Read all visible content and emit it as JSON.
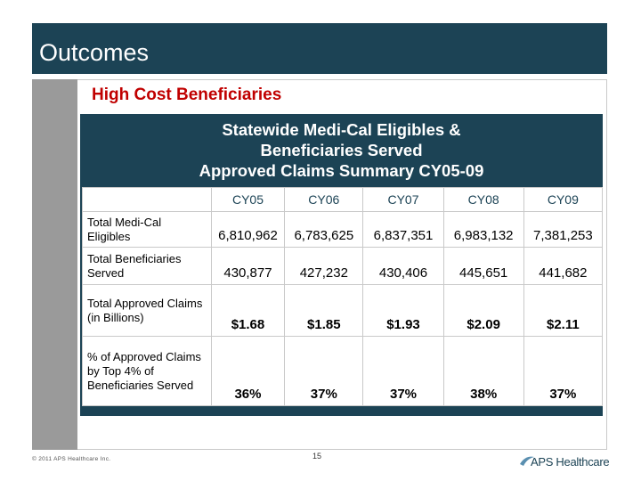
{
  "slide": {
    "title": "Outcomes",
    "subtitle": "High Cost Beneficiaries"
  },
  "table": {
    "title_lines": [
      "Statewide Medi-Cal Eligibles &",
      "Beneficiaries Served",
      "Approved Claims Summary CY05-09"
    ],
    "columns": [
      "CY05",
      "CY06",
      "CY07",
      "CY08",
      "CY09"
    ],
    "rows": [
      {
        "label": "Total Medi-Cal Eligibles",
        "values": [
          "6,810,962",
          "6,783,625",
          "6,837,351",
          "6,983,132",
          "7,381,253"
        ]
      },
      {
        "label": "Total Beneficiaries Served",
        "values": [
          "430,877",
          "427,232",
          "430,406",
          "445,651",
          "441,682"
        ]
      },
      {
        "label": "Total Approved Claims  (in Billions)",
        "values": [
          "$1.68",
          "$1.85",
          "$1.93",
          "$2.09",
          "$2.11"
        ]
      },
      {
        "label": "% of Approved Claims by Top 4% of Beneficiaries Served",
        "values": [
          "36%",
          "37%",
          "37%",
          "38%",
          "37%"
        ]
      }
    ]
  },
  "footer": {
    "copyright": "© 2011 APS Healthcare Inc.",
    "page_number": "15",
    "logo_text": "APS Healthcare"
  },
  "colors": {
    "title_bar": "#1c4355",
    "subtitle": "#c00000",
    "side_bar": "#9a9a9a"
  }
}
